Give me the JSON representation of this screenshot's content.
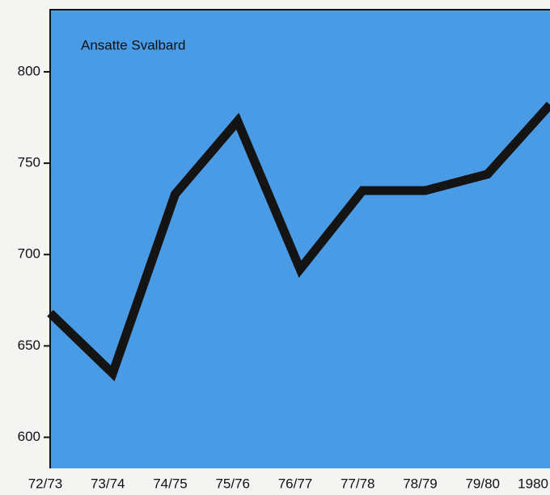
{
  "chart_data": {
    "type": "line",
    "title": "Ansatte Svalbard",
    "categories": [
      "72/73",
      "73/74",
      "74/75",
      "75/76",
      "76/77",
      "77/78",
      "78/79",
      "79/80",
      "1980"
    ],
    "series": [
      {
        "name": "Ansatte Svalbard",
        "color": "#141414",
        "values": [
          668,
          635,
          733,
          773,
          692,
          735,
          735,
          744,
          782
        ]
      }
    ],
    "background": "#4a9be6",
    "ylim": [
      583,
      834
    ],
    "yticks": [
      600,
      650,
      700,
      750,
      800
    ]
  }
}
